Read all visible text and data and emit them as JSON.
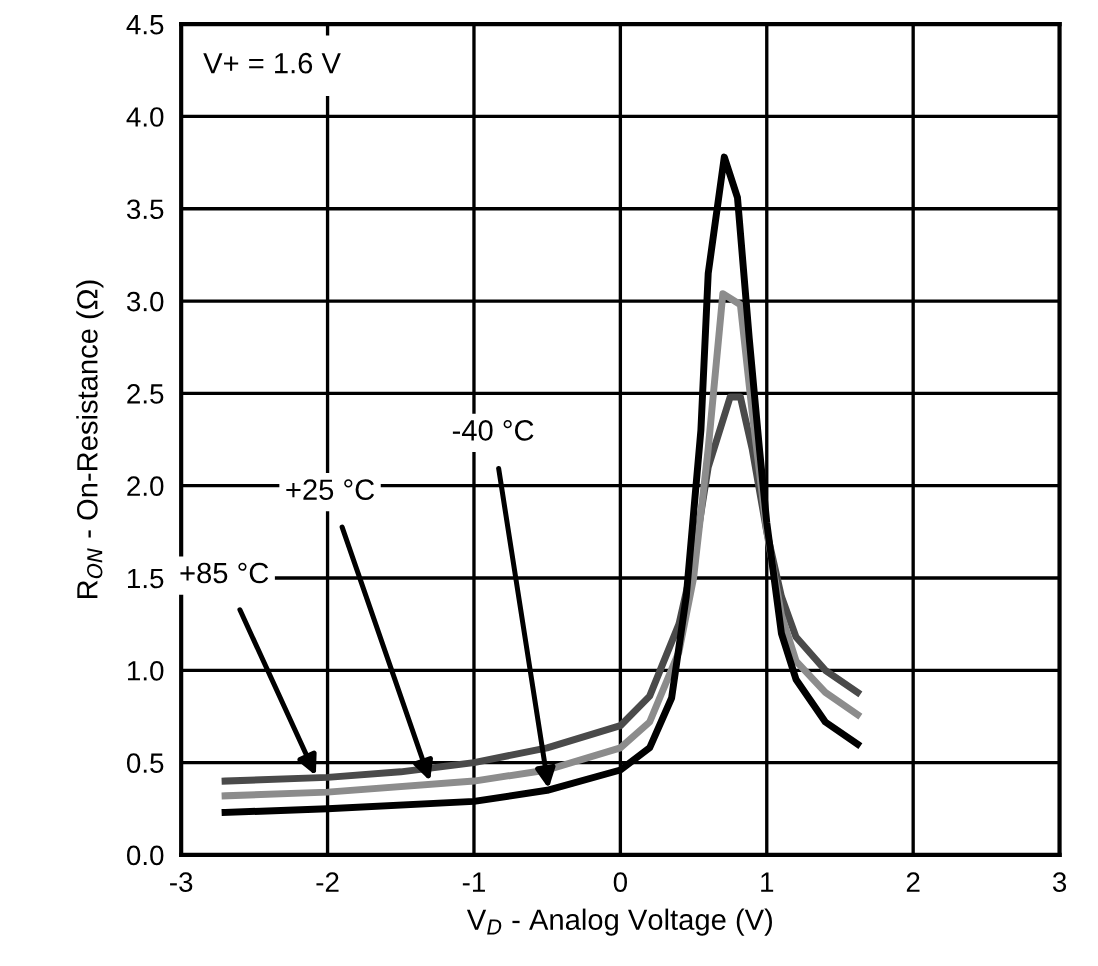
{
  "chart_data": {
    "type": "line",
    "xlabel": "V$_{D}$ - Analog Voltage (V)",
    "ylabel": "R$_{ON}$ - On-Resistance (Ω)",
    "xlim": [
      -3,
      3
    ],
    "xticks": [
      -3,
      -2,
      -1,
      0,
      1,
      2,
      3
    ],
    "ylim": [
      0,
      4.5
    ],
    "yticks": [
      {
        "value": 0,
        "label": "0.0"
      },
      0.5,
      {
        "value": 1,
        "label": "1.0"
      },
      1.5,
      {
        "value": 2,
        "label": "2.0"
      },
      2.5,
      {
        "value": 3,
        "label": "3.0"
      },
      3.5,
      {
        "value": 4,
        "label": "4.0"
      },
      4.5
    ],
    "grid": true,
    "legend": false,
    "marker": "none",
    "line_style": "solid",
    "series": [
      {
        "color": "#4a4a4a",
        "x": [
          -2.7,
          -2,
          -1.5,
          -1,
          -0.5,
          0,
          0.2,
          0.4,
          0.5,
          0.6,
          0.75,
          0.82,
          0.9,
          1.0,
          1.1,
          1.2,
          1.4,
          1.62
        ],
        "values": [
          0.4,
          0.42,
          0.45,
          0.5,
          0.58,
          0.7,
          0.86,
          1.25,
          1.6,
          2.1,
          2.48,
          2.48,
          2.2,
          1.75,
          1.4,
          1.18,
          1.0,
          0.88
        ]
      },
      {
        "color": "#8c8c8c",
        "x": [
          -2.7,
          -2,
          -1,
          -0.5,
          0,
          0.2,
          0.4,
          0.5,
          0.6,
          0.7,
          0.82,
          0.9,
          1.0,
          1.1,
          1.2,
          1.4,
          1.62
        ],
        "values": [
          0.32,
          0.34,
          0.4,
          0.46,
          0.58,
          0.72,
          1.1,
          1.5,
          2.2,
          3.04,
          2.98,
          2.4,
          1.75,
          1.3,
          1.05,
          0.88,
          0.76
        ]
      },
      {
        "color": "#000000",
        "x": [
          -2.7,
          -2,
          -1,
          -0.5,
          0,
          0.2,
          0.35,
          0.45,
          0.55,
          0.6,
          0.71,
          0.8,
          0.88,
          0.95,
          1.0,
          1.1,
          1.2,
          1.4,
          1.62
        ],
        "values": [
          0.23,
          0.25,
          0.29,
          0.35,
          0.46,
          0.58,
          0.85,
          1.4,
          2.3,
          3.15,
          3.78,
          3.56,
          2.8,
          2.2,
          1.8,
          1.2,
          0.95,
          0.72,
          0.6
        ]
      }
    ],
    "annotations": [
      "V+ = 1.6 V",
      {
        "text": "+85 °C",
        "x": -2.08,
        "y": 0.43
      },
      {
        "text": "+25 °C",
        "x": -1.3,
        "y": 0.4
      },
      {
        "text": "-40 °C",
        "x": -0.49,
        "y": 0.36
      }
    ]
  }
}
